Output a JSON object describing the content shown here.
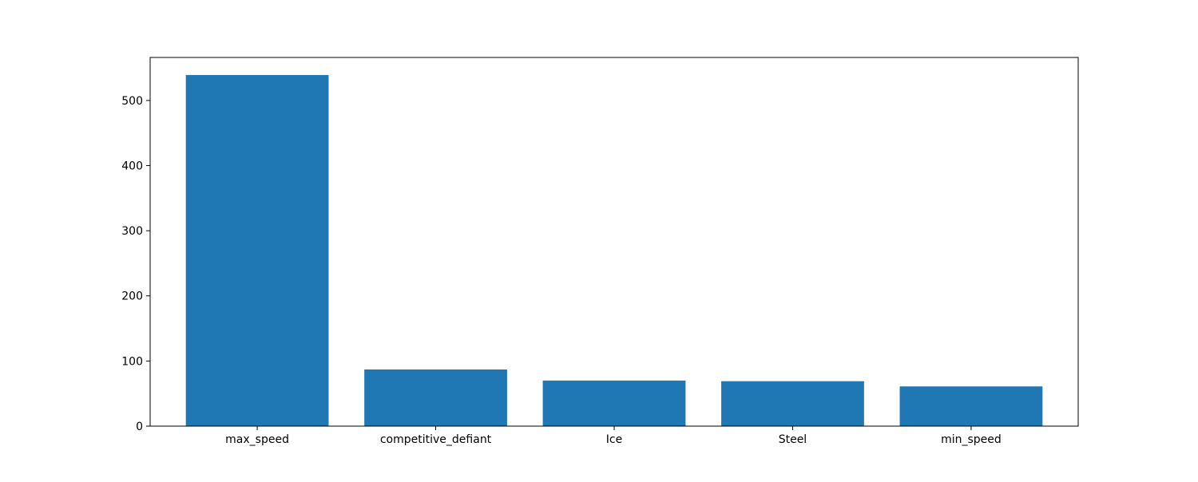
{
  "chart_data": {
    "type": "bar",
    "title": "",
    "xlabel": "",
    "ylabel": "",
    "categories": [
      "max_speed",
      "competitive_defiant",
      "Ice",
      "Steel",
      "min_speed"
    ],
    "values": [
      539,
      87,
      70,
      69,
      61
    ],
    "ylim": [
      0,
      566
    ],
    "yticks": [
      0,
      100,
      200,
      300,
      400,
      500
    ],
    "grid": false,
    "bar_color": "#1f77b4"
  }
}
